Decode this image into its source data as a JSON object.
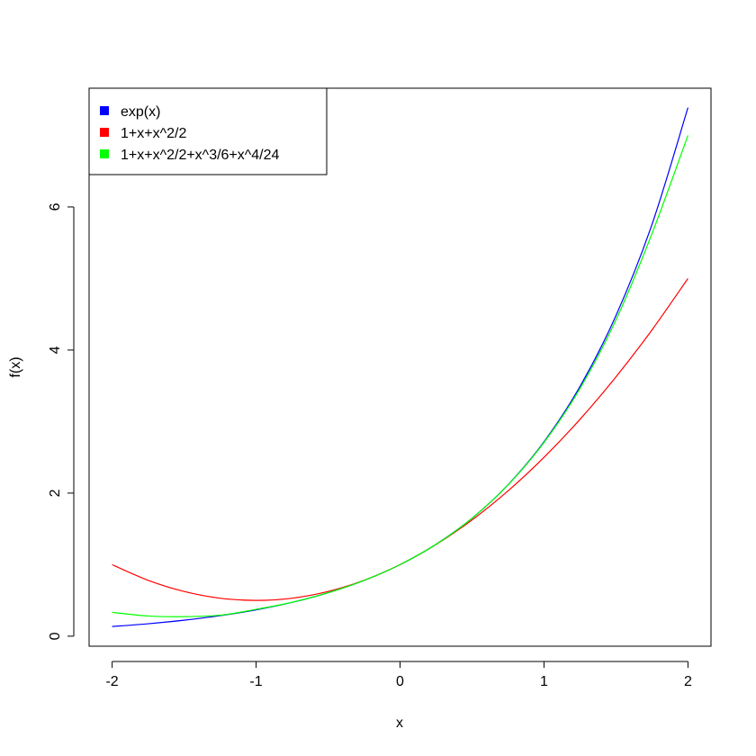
{
  "chart_data": {
    "type": "line",
    "title": "",
    "xlabel": "x",
    "ylabel": "f(x)",
    "xlim": [
      -2.16,
      2.16
    ],
    "ylim": [
      -0.14,
      7.66
    ],
    "x_ticks": [
      -2,
      -1,
      0,
      1,
      2
    ],
    "x_tick_labels": [
      "-2",
      "-1",
      "0",
      "1",
      "2"
    ],
    "y_ticks": [
      0,
      2,
      4,
      6
    ],
    "y_tick_labels": [
      "0",
      "2",
      "4",
      "6"
    ],
    "grid": false,
    "legend_position": "top-left",
    "x": [
      -2.0,
      -1.75,
      -1.5,
      -1.25,
      -1.0,
      -0.75,
      -0.5,
      -0.25,
      0.0,
      0.25,
      0.5,
      0.75,
      1.0,
      1.25,
      1.5,
      1.75,
      2.0
    ],
    "series": [
      {
        "name": "exp(x)",
        "color": "#0000ff",
        "values": [
          0.135,
          0.174,
          0.223,
          0.287,
          0.368,
          0.472,
          0.607,
          0.779,
          1.0,
          1.284,
          1.649,
          2.117,
          2.718,
          3.49,
          4.482,
          5.755,
          7.389
        ]
      },
      {
        "name": "1+x+x^2/2",
        "color": "#ff0000",
        "values": [
          1.0,
          0.781,
          0.625,
          0.531,
          0.5,
          0.531,
          0.625,
          0.781,
          1.0,
          1.281,
          1.625,
          2.031,
          2.5,
          3.031,
          3.625,
          4.281,
          5.0
        ]
      },
      {
        "name": "1+x+x^2/2+x^3/6+x^4/24",
        "color": "#00ff00",
        "values": [
          0.333,
          0.282,
          0.273,
          0.293,
          0.375,
          0.473,
          0.607,
          0.779,
          1.0,
          1.284,
          1.648,
          2.114,
          2.708,
          3.462,
          4.422,
          5.627,
          7.0
        ]
      }
    ]
  }
}
